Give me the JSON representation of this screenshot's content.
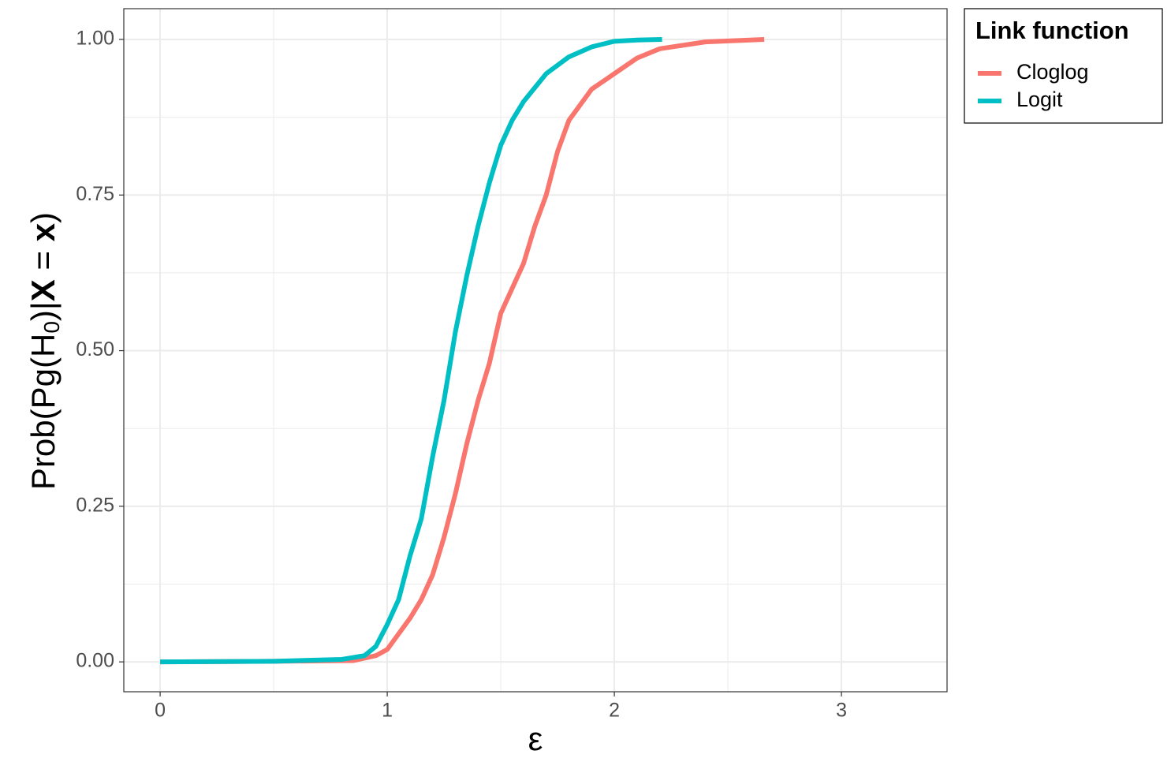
{
  "chart_data": {
    "type": "line",
    "xlabel": "ε",
    "ylabel": [
      "Prob(Pg(H",
      "0",
      ")|",
      "X",
      " = ",
      "x",
      ")"
    ],
    "xlim": [
      -0.16,
      3.465
    ],
    "ylim": [
      -0.048,
      1.0494
    ],
    "xticks": [
      0,
      1,
      2,
      3
    ],
    "xminorticks": [
      0.5,
      1.5,
      2.5
    ],
    "yticks": [
      {
        "value": 0,
        "label": "0.00"
      },
      {
        "value": 0.25,
        "label": "0.25"
      },
      {
        "value": 0.5,
        "label": "0.50"
      },
      {
        "value": 0.75,
        "label": "0.75"
      },
      {
        "value": 1,
        "label": "1.00"
      }
    ],
    "yminorticks": [
      0.125,
      0.375,
      0.625,
      0.875
    ],
    "grid": true,
    "legend_title": "Link function",
    "legend_position": "right",
    "series": [
      {
        "name": "Cloglog",
        "color": "#F8766D",
        "x": [
          0,
          0.5,
          0.85,
          0.95,
          1.0,
          1.05,
          1.1,
          1.15,
          1.2,
          1.25,
          1.3,
          1.35,
          1.4,
          1.45,
          1.5,
          1.55,
          1.6,
          1.65,
          1.7,
          1.75,
          1.8,
          1.9,
          2.0,
          2.1,
          2.2,
          2.4,
          2.66
        ],
        "values": [
          0,
          0.001,
          0.002,
          0.01,
          0.02,
          0.045,
          0.07,
          0.1,
          0.14,
          0.2,
          0.27,
          0.35,
          0.42,
          0.48,
          0.56,
          0.6,
          0.64,
          0.7,
          0.75,
          0.82,
          0.87,
          0.92,
          0.945,
          0.97,
          0.985,
          0.996,
          1.0
        ]
      },
      {
        "name": "Logit",
        "color": "#00BFC4",
        "x": [
          0,
          0.5,
          0.8,
          0.9,
          0.95,
          1.0,
          1.05,
          1.1,
          1.15,
          1.2,
          1.25,
          1.3,
          1.35,
          1.4,
          1.45,
          1.5,
          1.55,
          1.6,
          1.7,
          1.8,
          1.9,
          2.0,
          2.1,
          2.21
        ],
        "values": [
          0,
          0.001,
          0.004,
          0.01,
          0.025,
          0.06,
          0.1,
          0.17,
          0.23,
          0.33,
          0.42,
          0.53,
          0.62,
          0.7,
          0.77,
          0.83,
          0.87,
          0.9,
          0.945,
          0.972,
          0.988,
          0.997,
          0.999,
          1.0
        ]
      }
    ]
  }
}
